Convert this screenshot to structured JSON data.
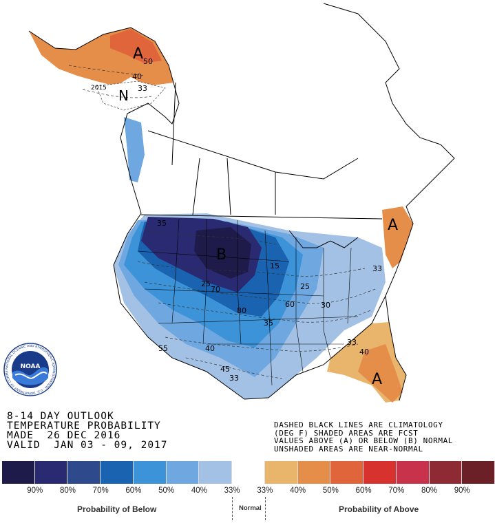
{
  "map": {
    "region_letters": [
      {
        "letter": "A",
        "category": "above"
      },
      {
        "letter": "N",
        "category": "normal"
      },
      {
        "letter": "B",
        "category": "below"
      },
      {
        "letter": "A",
        "category": "above"
      },
      {
        "letter": "A",
        "category": "above"
      }
    ],
    "contour_labels": [
      "50",
      "40",
      "33",
      "2015",
      "35",
      "15",
      "25",
      "70",
      "80",
      "60",
      "30",
      "35",
      "25",
      "33",
      "55",
      "40",
      "45",
      "33",
      "33",
      "40"
    ]
  },
  "title": {
    "line1": "8-14 DAY OUTLOOK",
    "line2": "TEMPERATURE PROBABILITY",
    "line3": "MADE  26 DEC 2016",
    "line4": "VALID  JAN 03 - 09, 2017"
  },
  "notes": {
    "line1": "DASHED BLACK LINES ARE CLIMATOLOGY",
    "line2": "(DEG F) SHADED AREAS ARE FCST",
    "line3": "VALUES ABOVE (A) OR BELOW (B) NORMAL",
    "line4": "UNSHADED AREAS ARE NEAR-NORMAL"
  },
  "legend": {
    "colors": [
      "#1e1b4b",
      "#2a2a72",
      "#2f4a8c",
      "#1a63b0",
      "#3d93d8",
      "#6fa8e0",
      "#a3c1e4",
      "#ffffff",
      "#e9b46b",
      "#e58e4a",
      "#e0653a",
      "#d8322e",
      "#c8324a",
      "#8e2a34",
      "#6b1f26"
    ],
    "ticks": [
      "90%",
      "80%",
      "70%",
      "60%",
      "50%",
      "40%",
      "33%",
      "33%",
      "40%",
      "50%",
      "60%",
      "70%",
      "80%",
      "90%"
    ],
    "below_label": "Probability of Below",
    "normal_label": "Normal",
    "above_label": "Probability of Above"
  },
  "logo": {
    "text": "NOAA",
    "ring_text": "NATIONAL OCEANIC AND ATMOSPHERIC ADMINISTRATION · U.S. DEPARTMENT OF COMMERCE"
  }
}
